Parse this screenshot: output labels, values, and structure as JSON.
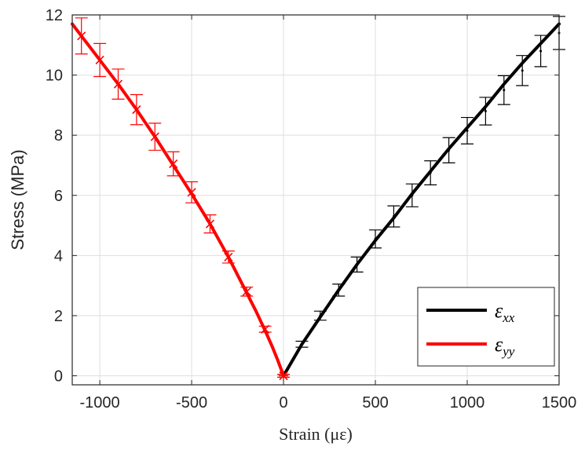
{
  "chart_data": {
    "type": "line",
    "xlabel": "Strain (με)",
    "ylabel": "Stress (MPa)",
    "xlim": [
      -1150,
      1500
    ],
    "ylim": [
      -0.3,
      12
    ],
    "xticks": [
      -1000,
      -500,
      0,
      500,
      1000,
      1500
    ],
    "yticks": [
      0,
      2,
      4,
      6,
      8,
      10,
      12
    ],
    "xtick_labels": [
      "-1000",
      "-500",
      "0",
      "500",
      "1000",
      "1500"
    ],
    "ytick_labels": [
      "0",
      "2",
      "4",
      "6",
      "8",
      "10",
      "12"
    ],
    "grid": true,
    "legend_position": "bottom-right",
    "series": [
      {
        "name": "εxx",
        "legend_base": "ε",
        "legend_sub": "xx",
        "color": "#000000",
        "marker": "errorbar",
        "curve": {
          "x": [
            0,
            100,
            200,
            300,
            400,
            500,
            600,
            700,
            800,
            900,
            1000,
            1100,
            1200,
            1300,
            1400,
            1500
          ],
          "y": [
            0,
            1.05,
            1.95,
            2.85,
            3.7,
            4.5,
            5.25,
            6.05,
            6.8,
            7.55,
            8.25,
            8.95,
            9.7,
            10.4,
            11.05,
            11.7
          ]
        },
        "points": {
          "x": [
            0,
            100,
            200,
            300,
            400,
            500,
            600,
            700,
            800,
            900,
            1000,
            1100,
            1200,
            1300,
            1400,
            1500
          ],
          "y": [
            0,
            1.05,
            2.0,
            2.85,
            3.7,
            4.55,
            5.3,
            6.0,
            6.75,
            7.5,
            8.15,
            8.8,
            9.5,
            10.15,
            10.8,
            11.4
          ],
          "err": [
            0.05,
            0.1,
            0.15,
            0.2,
            0.25,
            0.3,
            0.35,
            0.38,
            0.4,
            0.42,
            0.44,
            0.46,
            0.48,
            0.5,
            0.52,
            0.55
          ]
        }
      },
      {
        "name": "εyy",
        "legend_base": "ε",
        "legend_sub": "yy",
        "color": "#ff0000",
        "marker": "x",
        "curve": {
          "x": [
            0,
            -30,
            -60,
            -100,
            -150,
            -200,
            -300,
            -400,
            -500,
            -600,
            -700,
            -800,
            -900,
            -1000,
            -1100,
            -1150
          ],
          "y": [
            0,
            0.5,
            0.95,
            1.5,
            2.15,
            2.75,
            3.95,
            5.05,
            6.05,
            7.0,
            7.95,
            8.85,
            9.7,
            10.5,
            11.3,
            11.7
          ]
        },
        "points": {
          "x": [
            0,
            -100,
            -200,
            -300,
            -400,
            -500,
            -600,
            -700,
            -800,
            -900,
            -1000,
            -1100
          ],
          "y": [
            0,
            1.55,
            2.8,
            3.95,
            5.05,
            6.1,
            7.05,
            7.95,
            8.85,
            9.7,
            10.5,
            11.3
          ],
          "err": [
            0.05,
            0.1,
            0.15,
            0.2,
            0.3,
            0.35,
            0.4,
            0.45,
            0.5,
            0.5,
            0.55,
            0.6
          ]
        }
      }
    ]
  }
}
